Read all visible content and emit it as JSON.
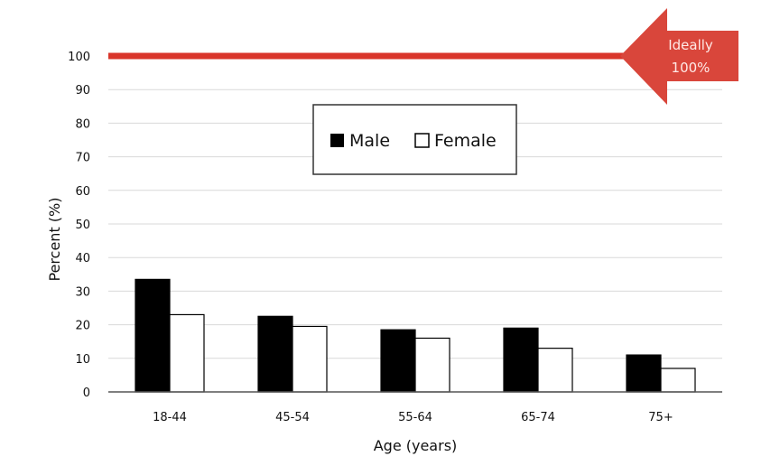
{
  "chart_data": {
    "type": "bar",
    "categories": [
      "18-44",
      "45-54",
      "55-64",
      "65-74",
      "75+"
    ],
    "series": [
      {
        "name": "Male",
        "values": [
          33.5,
          22.5,
          18.5,
          19,
          11
        ],
        "color": "#000000"
      },
      {
        "name": "Female",
        "values": [
          23,
          19.5,
          16,
          13,
          7
        ],
        "color": "#ffffff"
      }
    ],
    "xlabel": "Age (years)",
    "ylabel": "Percent (%)",
    "ylim": [
      0,
      100
    ],
    "yticks": [
      0,
      10,
      20,
      30,
      40,
      50,
      60,
      70,
      80,
      90,
      100
    ],
    "grid": true,
    "legend_position": "top-center",
    "reference_line": {
      "value": 100,
      "color": "#d9362b"
    },
    "annotation": {
      "lines": [
        "Ideally",
        "100%"
      ],
      "color": "#d9463b"
    }
  }
}
